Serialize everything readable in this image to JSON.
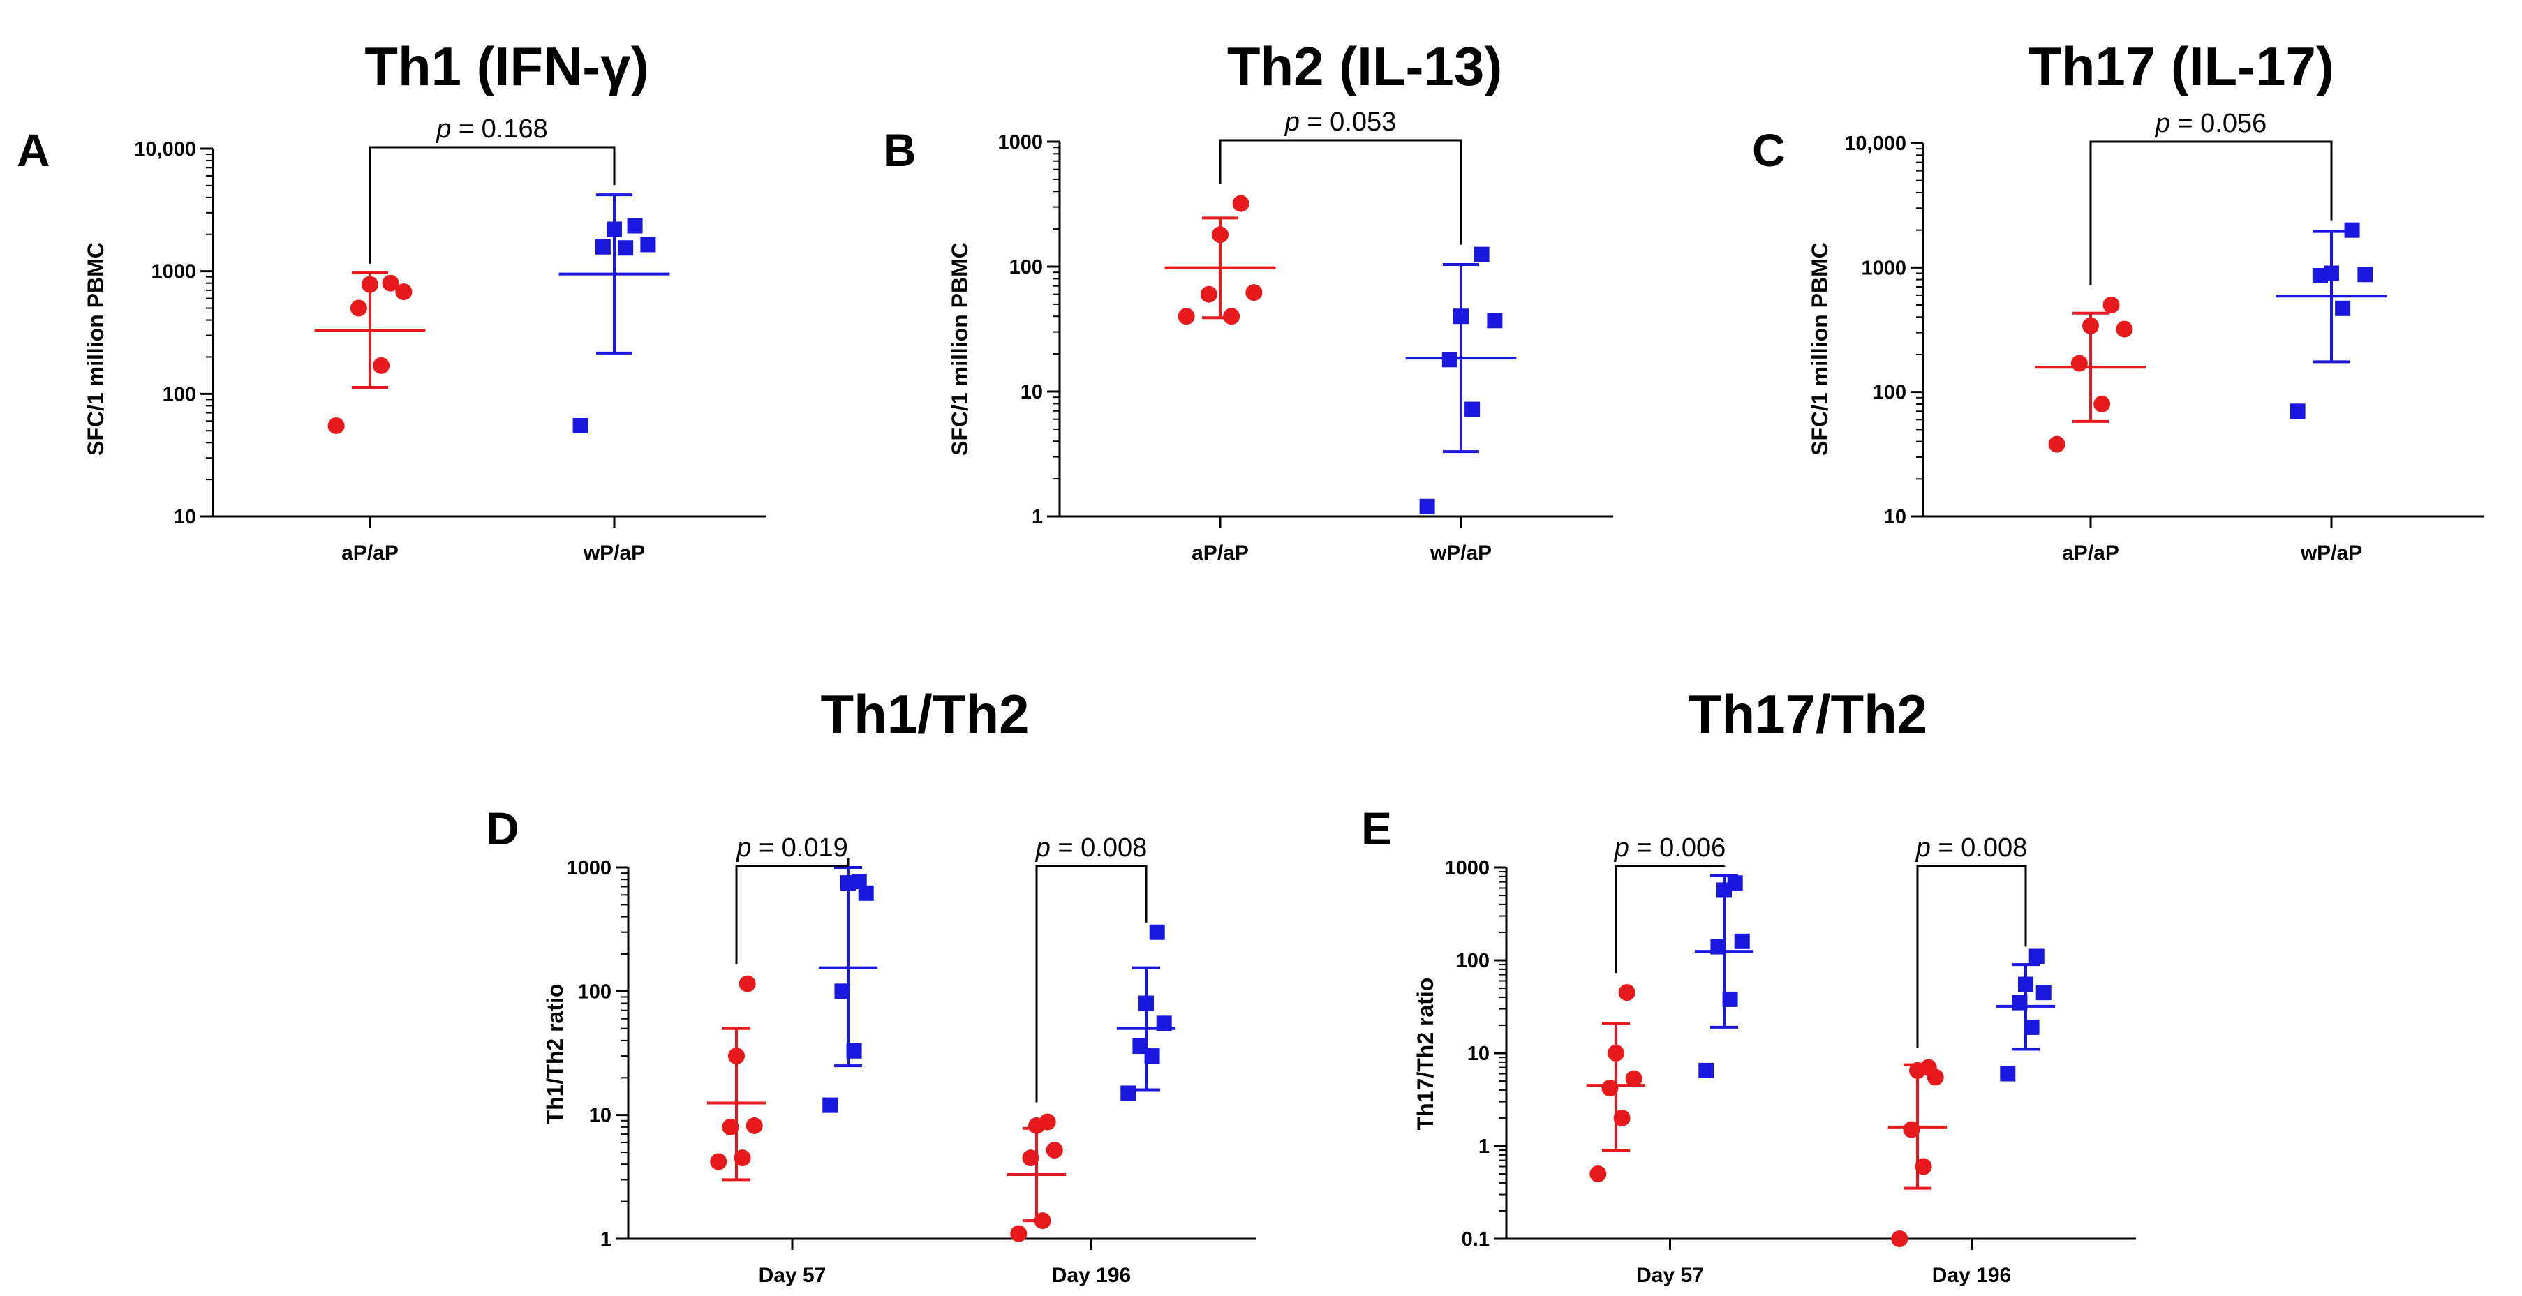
{
  "colors": {
    "red": "#e8191d",
    "blue": "#1a18de",
    "axis": "#000000"
  },
  "chart_data": [
    {
      "id": "A",
      "letter": "A",
      "type": "scatter",
      "title": "Th1 (IFN-γ)",
      "ylabel": "SFC/1 million PBMC",
      "yscale": "log",
      "ylim": [
        10,
        10000
      ],
      "yticks": [
        {
          "value": 10,
          "label": "10"
        },
        {
          "value": 100,
          "label": "100"
        },
        {
          "value": 1000,
          "label": "1000"
        },
        {
          "value": 10000,
          "label": "10,000"
        }
      ],
      "categories": [
        "aP/aP",
        "wP/aP"
      ],
      "groups": [
        {
          "category": "aP/aP",
          "color": "red",
          "marker": "circle",
          "points": [
            55,
            170,
            500,
            680,
            780,
            800
          ],
          "center": 330,
          "lower": 113,
          "upper": 975
        },
        {
          "category": "wP/aP",
          "color": "blue",
          "marker": "square",
          "points": [
            55,
            1550,
            1580,
            1650,
            2200,
            2350
          ],
          "center": 950,
          "lower": 215,
          "upper": 4200
        }
      ],
      "comparisons": [
        {
          "from": 0,
          "to": 1,
          "p_prefix": "p",
          "p_value": " = 0.168"
        }
      ]
    },
    {
      "id": "B",
      "letter": "B",
      "type": "scatter",
      "title": "Th2 (IL-13)",
      "ylabel": "SFC/1 million PBMC",
      "yscale": "log",
      "ylim": [
        1,
        1000
      ],
      "yticks": [
        {
          "value": 1,
          "label": "1"
        },
        {
          "value": 10,
          "label": "10"
        },
        {
          "value": 100,
          "label": "100"
        },
        {
          "value": 1000,
          "label": "1000"
        }
      ],
      "categories": [
        "aP/aP",
        "wP/aP"
      ],
      "groups": [
        {
          "category": "aP/aP",
          "color": "red",
          "marker": "circle",
          "points": [
            40,
            40,
            60,
            62,
            180,
            320
          ],
          "center": 98,
          "lower": 39,
          "upper": 245
        },
        {
          "category": "wP/aP",
          "color": "blue",
          "marker": "square",
          "points": [
            1.2,
            7.2,
            18,
            37,
            40,
            125
          ],
          "center": 18.5,
          "lower": 3.3,
          "upper": 104
        }
      ],
      "comparisons": [
        {
          "from": 0,
          "to": 1,
          "p_prefix": "p",
          "p_value": " = 0.053"
        }
      ]
    },
    {
      "id": "C",
      "letter": "C",
      "type": "scatter",
      "title": "Th17 (IL-17)",
      "ylabel": "SFC/1 million PBMC",
      "yscale": "log",
      "ylim": [
        10,
        10000
      ],
      "yticks": [
        {
          "value": 10,
          "label": "10"
        },
        {
          "value": 100,
          "label": "100"
        },
        {
          "value": 1000,
          "label": "1000"
        },
        {
          "value": 10000,
          "label": "10,000"
        }
      ],
      "categories": [
        "aP/aP",
        "wP/aP"
      ],
      "groups": [
        {
          "category": "aP/aP",
          "color": "red",
          "marker": "circle",
          "points": [
            38,
            80,
            170,
            320,
            340,
            500
          ],
          "center": 158,
          "lower": 58,
          "upper": 430
        },
        {
          "category": "wP/aP",
          "color": "blue",
          "marker": "square",
          "points": [
            70,
            470,
            860,
            880,
            900,
            2000
          ],
          "center": 590,
          "lower": 175,
          "upper": 1950
        }
      ],
      "comparisons": [
        {
          "from": 0,
          "to": 1,
          "p_prefix": "p",
          "p_value": " = 0.056"
        }
      ]
    },
    {
      "id": "D",
      "letter": "D",
      "type": "scatter",
      "title": "Th1/Th2",
      "ylabel": "Th1/Th2 ratio",
      "yscale": "log",
      "ylim": [
        1,
        1000
      ],
      "yticks": [
        {
          "value": 1,
          "label": "1"
        },
        {
          "value": 10,
          "label": "10"
        },
        {
          "value": 100,
          "label": "100"
        },
        {
          "value": 1000,
          "label": "1000"
        }
      ],
      "categories": [
        "Day 57",
        "Day 196"
      ],
      "groups": [
        {
          "category": "Day 57",
          "color": "red",
          "marker": "circle",
          "points": [
            4.2,
            4.5,
            8,
            8.2,
            30,
            115
          ],
          "center": 12.5,
          "lower": 3.0,
          "upper": 50
        },
        {
          "category": "Day 57",
          "color": "blue",
          "marker": "square",
          "points": [
            12,
            33,
            100,
            620,
            750,
            770
          ],
          "center": 155,
          "lower": 25,
          "upper": 1000
        },
        {
          "category": "Day 196",
          "color": "red",
          "marker": "circle",
          "points": [
            1.1,
            1.4,
            4.5,
            5.2,
            8.2,
            8.8
          ],
          "center": 3.3,
          "lower": 1.4,
          "upper": 7.8
        },
        {
          "category": "Day 196",
          "color": "blue",
          "marker": "square",
          "points": [
            15,
            30,
            36,
            55,
            80,
            300
          ],
          "center": 50,
          "lower": 16,
          "upper": 155
        }
      ],
      "comparisons": [
        {
          "from": 0,
          "to": 1,
          "p_prefix": "p",
          "p_value": " = 0.019"
        },
        {
          "from": 2,
          "to": 3,
          "p_prefix": "p",
          "p_value": " = 0.008"
        }
      ]
    },
    {
      "id": "E",
      "letter": "E",
      "type": "scatter",
      "title": "Th17/Th2",
      "ylabel": "Th17/Th2 ratio",
      "yscale": "log",
      "ylim": [
        0.1,
        1000
      ],
      "yticks": [
        {
          "value": 0.1,
          "label": "0.1"
        },
        {
          "value": 1,
          "label": "1"
        },
        {
          "value": 10,
          "label": "10"
        },
        {
          "value": 100,
          "label": "100"
        },
        {
          "value": 1000,
          "label": "1000"
        }
      ],
      "categories": [
        "Day 57",
        "Day 196"
      ],
      "groups": [
        {
          "category": "Day 57",
          "color": "red",
          "marker": "circle",
          "points": [
            0.5,
            2,
            4.2,
            5.3,
            10,
            45
          ],
          "center": 4.5,
          "lower": 0.9,
          "upper": 21
        },
        {
          "category": "Day 57",
          "color": "blue",
          "marker": "square",
          "points": [
            6.5,
            38,
            140,
            160,
            570,
            680
          ],
          "center": 125,
          "lower": 19,
          "upper": 820
        },
        {
          "category": "Day 196",
          "color": "red",
          "marker": "circle",
          "points": [
            0.1,
            0.6,
            1.5,
            5.5,
            6.5,
            7
          ],
          "center": 1.6,
          "lower": 0.35,
          "upper": 7.5
        },
        {
          "category": "Day 196",
          "color": "blue",
          "marker": "square",
          "points": [
            6,
            19,
            35,
            45,
            55,
            110
          ],
          "center": 32,
          "lower": 11,
          "upper": 90
        }
      ],
      "comparisons": [
        {
          "from": 0,
          "to": 1,
          "p_prefix": "p",
          "p_value": " = 0.006"
        },
        {
          "from": 2,
          "to": 3,
          "p_prefix": "p",
          "p_value": " = 0.008"
        }
      ]
    }
  ]
}
